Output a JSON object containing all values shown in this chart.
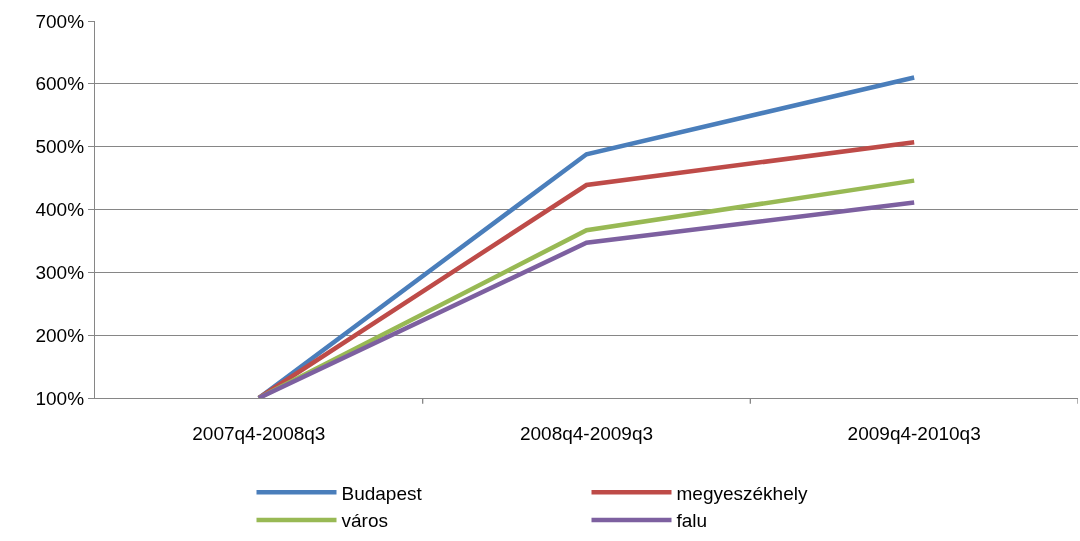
{
  "chart_data": {
    "type": "line",
    "categories": [
      "2007q4-2008q3",
      "2008q4-2009q3",
      "2009q4-2010q3"
    ],
    "series": [
      {
        "name": "Budapest",
        "color": "#4a7ebb",
        "values": [
          100,
          488,
          610
        ]
      },
      {
        "name": "megyeszékhely",
        "color": "#be4b48",
        "values": [
          100,
          439,
          507
        ]
      },
      {
        "name": "város",
        "color": "#98b954",
        "values": [
          100,
          367,
          446
        ]
      },
      {
        "name": "falu",
        "color": "#7d60a0",
        "values": [
          100,
          347,
          411
        ]
      }
    ],
    "ylim": [
      100,
      700
    ],
    "yticks": [
      {
        "value": 100,
        "label": "100%"
      },
      {
        "value": 200,
        "label": "200%"
      },
      {
        "value": 300,
        "label": "300%"
      },
      {
        "value": 400,
        "label": "400%"
      },
      {
        "value": 500,
        "label": "500%"
      },
      {
        "value": 600,
        "label": "600%"
      },
      {
        "value": 700,
        "label": "700%"
      }
    ],
    "grid": "y",
    "legend": "bottom",
    "marker": "none",
    "line_style": "solid"
  }
}
